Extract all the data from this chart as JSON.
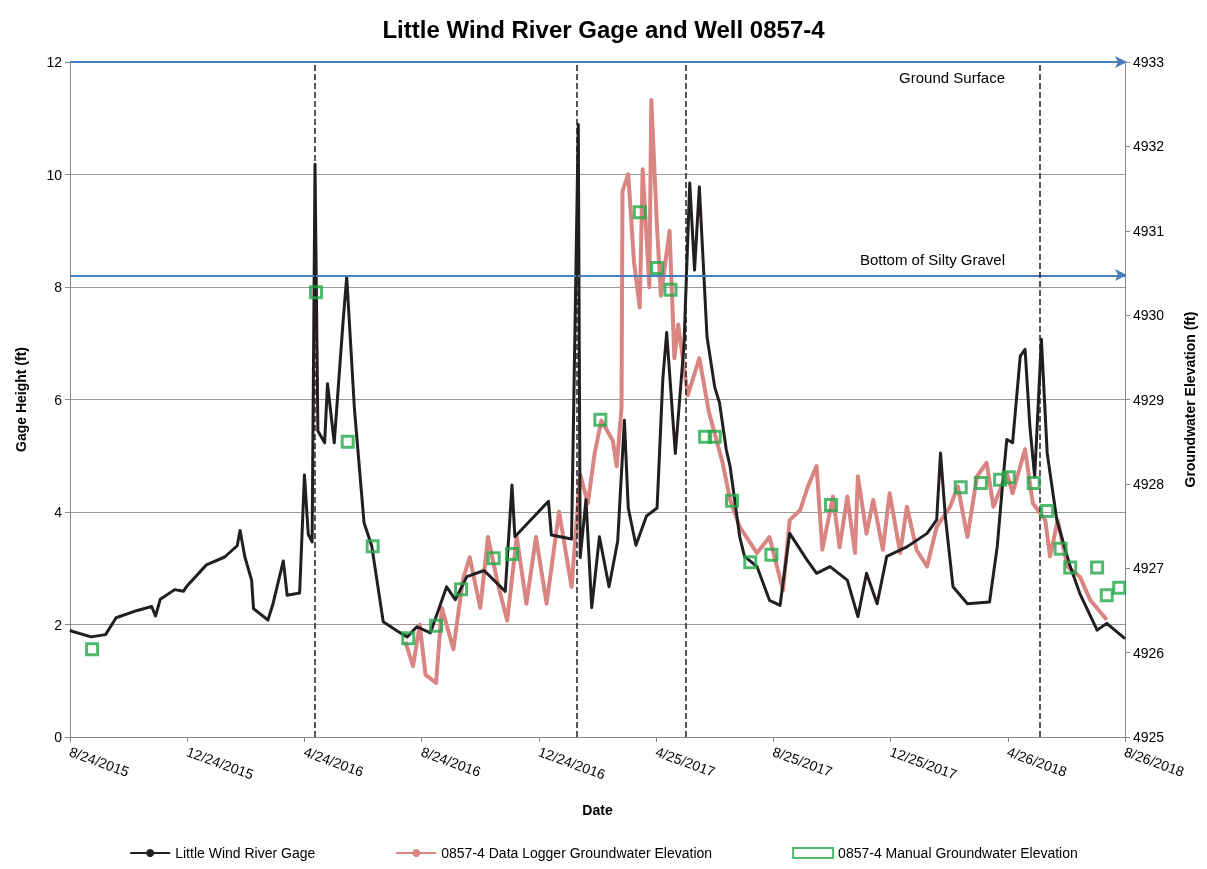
{
  "chart_data": {
    "type": "line",
    "title": "Little Wind River Gage and Well 0857-4",
    "xlabel": "Date",
    "ylabel": "Gage Height (ft)",
    "y2label": "Groundwater Elevation (ft)",
    "xlim": [
      "2015-08-24",
      "2018-08-26"
    ],
    "xticks": [
      {
        "value": "2015-08-24",
        "label": "8/24/2015"
      },
      {
        "value": "2015-12-24",
        "label": "12/24/2015"
      },
      {
        "value": "2016-04-24",
        "label": "4/24/2016"
      },
      {
        "value": "2016-08-24",
        "label": "8/24/2016"
      },
      {
        "value": "2016-12-24",
        "label": "12/24/2016"
      },
      {
        "value": "2017-04-25",
        "label": "4/25/2017"
      },
      {
        "value": "2017-08-25",
        "label": "8/25/2017"
      },
      {
        "value": "2017-12-25",
        "label": "12/25/2017"
      },
      {
        "value": "2018-04-26",
        "label": "4/26/2018"
      },
      {
        "value": "2018-08-26",
        "label": "8/26/2018"
      }
    ],
    "ylim": [
      0,
      12
    ],
    "yticks": [
      0,
      2,
      4,
      6,
      8,
      10,
      12
    ],
    "y2lim": [
      4925,
      4933
    ],
    "y2ticks": [
      4925,
      4926,
      4927,
      4928,
      4929,
      4930,
      4931,
      4932,
      4933
    ],
    "grid": "y",
    "legend": "bottom",
    "series": [
      {
        "name": "Little Wind River Gage",
        "color": "#231f20",
        "marker": "none",
        "x": [
          "2015-08-24",
          "2015-08-26",
          "2015-09-15",
          "2015-09-30",
          "2015-10-11",
          "2015-11-02",
          "2015-11-17",
          "2015-11-21",
          "2015-11-26",
          "2015-12-11",
          "2015-12-20",
          "2015-12-24",
          "2016-01-13",
          "2016-02-01",
          "2016-02-14",
          "2016-02-17",
          "2016-02-22",
          "2016-02-29",
          "2016-03-02",
          "2016-03-17",
          "2016-03-22",
          "2016-04-02",
          "2016-04-06",
          "2016-04-19",
          "2016-04-24",
          "2016-04-28",
          "2016-05-02",
          "2016-05-05",
          "2016-05-08",
          "2016-05-15",
          "2016-05-18",
          "2016-05-25",
          "2016-06-03",
          "2016-06-07",
          "2016-06-15",
          "2016-06-25",
          "2016-07-03",
          "2016-07-15",
          "2016-07-30",
          "2016-08-09",
          "2016-08-19",
          "2016-09-02",
          "2016-09-19",
          "2016-09-28",
          "2016-10-10",
          "2016-10-28",
          "2016-11-19",
          "2016-11-26",
          "2016-11-29",
          "2016-12-15",
          "2017-01-03",
          "2017-01-06",
          "2017-01-27",
          "2017-02-03",
          "2017-02-05",
          "2017-02-11",
          "2017-02-17",
          "2017-02-25",
          "2017-03-07",
          "2017-03-16",
          "2017-03-23",
          "2017-03-27",
          "2017-04-04",
          "2017-04-15",
          "2017-04-26",
          "2017-05-02",
          "2017-05-06",
          "2017-05-15",
          "2017-05-24",
          "2017-05-30",
          "2017-06-04",
          "2017-06-09",
          "2017-06-17",
          "2017-06-25",
          "2017-06-30",
          "2017-07-07",
          "2017-07-11",
          "2017-07-21",
          "2017-07-26",
          "2017-08-08",
          "2017-08-21",
          "2017-09-01",
          "2017-09-11",
          "2017-09-29",
          "2017-10-09",
          "2017-10-23",
          "2017-11-10",
          "2017-11-21",
          "2017-11-30",
          "2017-12-11",
          "2017-12-21",
          "2018-01-11",
          "2018-02-01",
          "2018-02-11",
          "2018-02-15",
          "2018-02-20",
          "2018-02-28",
          "2018-03-15",
          "2018-04-07",
          "2018-04-15",
          "2018-04-21",
          "2018-04-25",
          "2018-05-01",
          "2018-05-09",
          "2018-05-14",
          "2018-05-19",
          "2018-05-24",
          "2018-05-31",
          "2018-06-06",
          "2018-06-16",
          "2018-06-30",
          "2018-07-10",
          "2018-07-28",
          "2018-08-07",
          "2018-08-26"
        ],
        "values": [
          1.9,
          1.88,
          1.78,
          1.82,
          2.12,
          2.25,
          2.32,
          2.15,
          2.45,
          2.62,
          2.59,
          2.69,
          3.06,
          3.2,
          3.4,
          3.67,
          3.2,
          2.79,
          2.28,
          2.08,
          2.35,
          3.13,
          2.52,
          2.56,
          4.66,
          3.6,
          3.47,
          10.18,
          5.44,
          5.23,
          6.28,
          5.23,
          7.34,
          8.18,
          5.84,
          3.81,
          3.4,
          2.05,
          1.88,
          1.78,
          1.96,
          1.85,
          2.67,
          2.44,
          2.85,
          2.96,
          2.59,
          4.48,
          3.56,
          3.85,
          4.19,
          3.59,
          3.52,
          10.89,
          3.19,
          4.22,
          2.3,
          3.56,
          2.67,
          3.48,
          5.63,
          4.07,
          3.41,
          3.93,
          4.07,
          6.37,
          7.19,
          5.04,
          6.96,
          9.85,
          8.3,
          9.78,
          7.11,
          6.22,
          5.94,
          5.11,
          4.81,
          3.56,
          3.21,
          3.03,
          2.43,
          2.34,
          3.62,
          3.15,
          2.91,
          3.03,
          2.79,
          2.14,
          2.91,
          2.37,
          3.21,
          3.38,
          3.62,
          3.86,
          5.05,
          3.92,
          2.67,
          2.37,
          2.4,
          3.38,
          4.57,
          5.29,
          5.23,
          6.77,
          6.89,
          5.52,
          4.63,
          7.07,
          5.05,
          3.86,
          3.03,
          2.55,
          1.9,
          2.02,
          1.75
        ]
      },
      {
        "name": "0857-4 Data Logger Groundwater Elevation",
        "axis": "y2",
        "color": "#d98683",
        "marker": "none",
        "x": [
          "2016-08-07",
          "2016-08-15",
          "2016-08-22",
          "2016-08-28",
          "2016-09-08",
          "2016-09-14",
          "2016-09-26",
          "2016-10-06",
          "2016-10-13",
          "2016-10-24",
          "2016-11-01",
          "2016-11-12",
          "2016-11-21",
          "2016-12-01",
          "2016-12-11",
          "2016-12-21",
          "2017-01-01",
          "2017-01-14",
          "2017-01-27",
          "2017-02-05",
          "2017-02-13",
          "2017-02-20",
          "2017-02-27",
          "2017-03-11",
          "2017-03-15",
          "2017-03-20",
          "2017-03-21",
          "2017-03-27",
          "2017-04-02",
          "2017-04-08",
          "2017-04-11",
          "2017-04-18",
          "2017-04-20",
          "2017-04-26",
          "2017-04-30",
          "2017-05-09",
          "2017-05-14",
          "2017-05-18",
          "2017-05-28",
          "2017-06-09",
          "2017-06-19",
          "2017-07-03",
          "2017-07-11",
          "2017-07-21",
          "2017-08-08",
          "2017-08-21",
          "2017-09-04",
          "2017-09-11",
          "2017-09-22",
          "2017-09-30",
          "2017-10-09",
          "2017-10-15",
          "2017-10-26",
          "2017-11-02",
          "2017-11-10",
          "2017-11-18",
          "2017-11-21",
          "2017-11-30",
          "2017-12-07",
          "2017-12-17",
          "2017-12-24",
          "2018-01-04",
          "2018-01-11",
          "2018-01-21",
          "2018-02-01",
          "2018-02-11",
          "2018-02-25",
          "2018-03-05",
          "2018-03-15",
          "2018-03-25",
          "2018-04-04",
          "2018-04-11",
          "2018-04-25",
          "2018-05-01",
          "2018-05-14",
          "2018-05-22",
          "2018-06-04",
          "2018-06-09",
          "2018-06-17",
          "2018-06-27",
          "2018-07-10",
          "2018-07-21",
          "2018-08-07"
        ],
        "values": [
          4926.13,
          4925.84,
          4926.33,
          4925.74,
          4925.64,
          4926.53,
          4926.04,
          4926.87,
          4927.13,
          4926.53,
          4927.37,
          4926.78,
          4926.38,
          4927.37,
          4926.58,
          4927.37,
          4926.58,
          4927.67,
          4926.78,
          4928.11,
          4927.77,
          4928.36,
          4928.75,
          4928.51,
          4928.21,
          4928.9,
          4931.47,
          4931.67,
          4930.63,
          4930.09,
          4931.73,
          4930.33,
          4932.55,
          4931.03,
          4930.23,
          4931.0,
          4929.49,
          4929.89,
          4929.05,
          4929.49,
          4928.85,
          4928.26,
          4927.81,
          4927.49,
          4927.18,
          4927.37,
          4926.74,
          4927.57,
          4927.69,
          4927.97,
          4928.21,
          4927.22,
          4927.85,
          4927.25,
          4927.85,
          4927.18,
          4928.09,
          4927.41,
          4927.81,
          4927.22,
          4927.89,
          4927.18,
          4927.73,
          4927.22,
          4927.02,
          4927.49,
          4927.73,
          4927.97,
          4927.37,
          4928.09,
          4928.25,
          4927.73,
          4928.13,
          4927.89,
          4928.41,
          4927.77,
          4927.57,
          4927.14,
          4927.57,
          4927.02,
          4926.9,
          4926.62,
          4926.39
        ]
      },
      {
        "name": "0857-4 Manual Groundwater Elevation",
        "type": "scatter",
        "axis": "y2",
        "color": "#23a84a",
        "marker": "square",
        "x": [
          "2015-09-16",
          "2016-05-06",
          "2016-06-08",
          "2016-07-04",
          "2016-08-10",
          "2016-09-08",
          "2016-10-04",
          "2016-11-07",
          "2016-11-26",
          "2017-02-26",
          "2017-04-08",
          "2017-04-26",
          "2017-05-10",
          "2017-06-15",
          "2017-06-25",
          "2017-07-13",
          "2017-08-01",
          "2017-08-23",
          "2017-10-24",
          "2018-03-08",
          "2018-03-29",
          "2018-04-18",
          "2018-04-27",
          "2018-05-23",
          "2018-06-06",
          "2018-06-20",
          "2018-06-30",
          "2018-07-28",
          "2018-08-07",
          "2018-08-20"
        ],
        "values": [
          4926.04,
          4930.27,
          4928.5,
          4927.26,
          4926.17,
          4926.32,
          4926.75,
          4927.12,
          4927.17,
          4928.76,
          4931.22,
          4930.56,
          4930.3,
          4928.56,
          4928.56,
          4927.8,
          4927.07,
          4927.16,
          4927.75,
          4927.96,
          4928.01,
          4928.05,
          4928.08,
          4928.01,
          4927.68,
          4927.23,
          4927.01,
          4927.01,
          4926.68,
          4926.77
        ]
      }
    ],
    "ref_lines": [
      {
        "axis": "y2",
        "value": 4933,
        "label": "Ground Surface",
        "color": "#4a7ebb",
        "line_style": "solid"
      },
      {
        "axis": "y2",
        "value": 4930.47,
        "label": "Bottom of Silty Gravel",
        "color": "#4a7ebb",
        "line_style": "solid"
      },
      {
        "axis": "x",
        "value": "2016-05-05",
        "color": "#231f20",
        "line_style": "dashed"
      },
      {
        "axis": "x",
        "value": "2017-02-01",
        "color": "#231f20",
        "line_style": "dashed"
      },
      {
        "axis": "x",
        "value": "2017-05-26",
        "color": "#231f20",
        "line_style": "dashed"
      },
      {
        "axis": "x",
        "value": "2018-05-29",
        "color": "#231f20",
        "line_style": "dashed"
      }
    ]
  }
}
